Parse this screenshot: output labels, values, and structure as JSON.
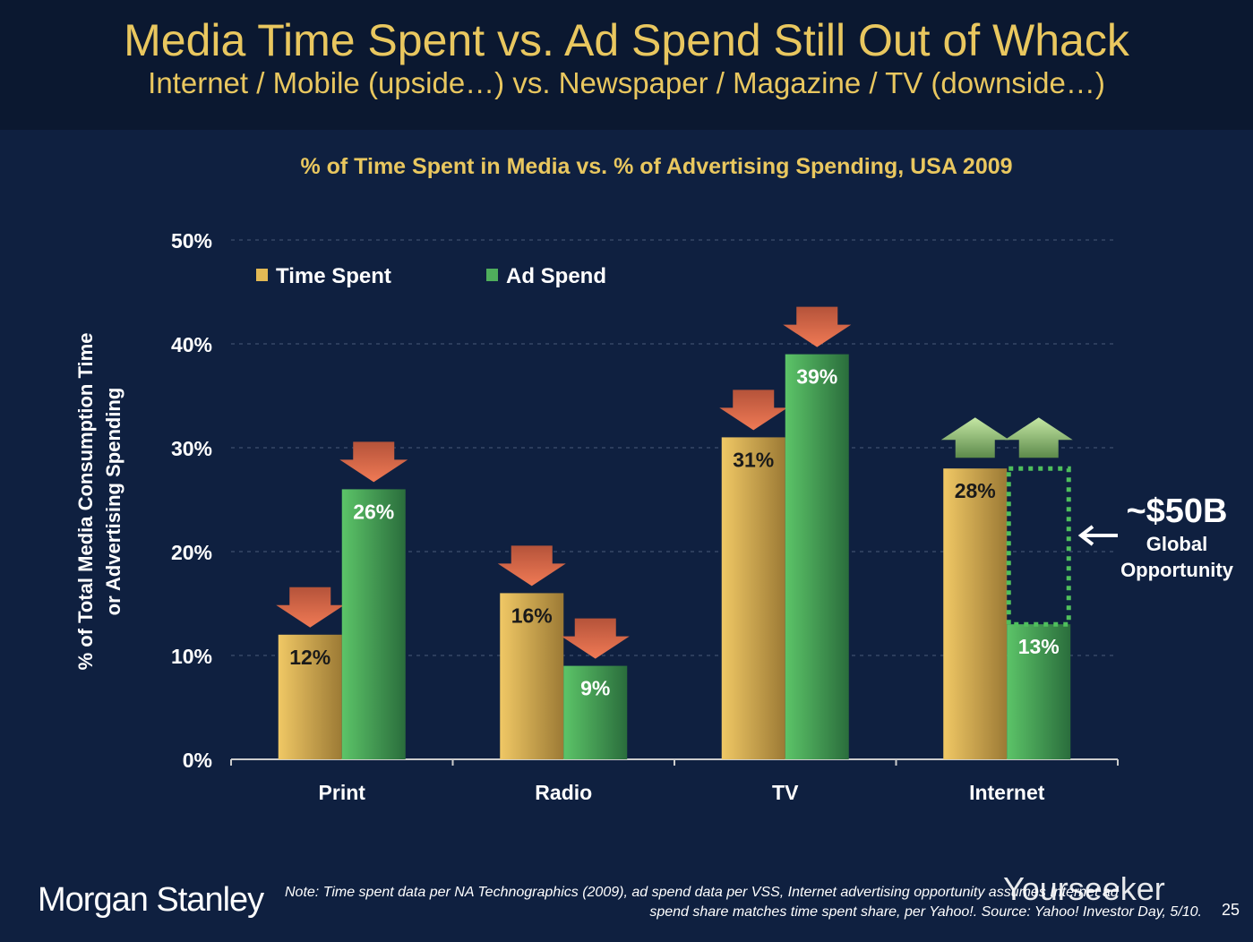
{
  "header": {
    "title": "Media Time Spent vs. Ad Spend Still Out of Whack",
    "subtitle": "Internet / Mobile (upside…) vs. Newspaper / Magazine / TV (downside…)"
  },
  "chart_data": {
    "type": "bar",
    "title": "% of Time Spent in Media vs. % of Advertising Spending, USA 2009",
    "ylabel": "% of Total Media Consumption Time or Advertising Spending",
    "ylabel_lines": [
      "% of Total Media Consumption Time",
      "or Advertising Spending"
    ],
    "xlabel": "",
    "ylim": [
      0,
      50
    ],
    "yticks": [
      "0%",
      "10%",
      "20%",
      "30%",
      "40%",
      "50%"
    ],
    "grid": true,
    "legend": "top-left",
    "categories": [
      "Print",
      "Radio",
      "TV",
      "Internet"
    ],
    "series": [
      {
        "name": "Time Spent",
        "values": [
          12,
          16,
          31,
          28
        ],
        "labels": [
          "12%",
          "16%",
          "31%",
          "28%"
        ],
        "color": "#e2b955",
        "trend": [
          "down",
          "down",
          "down",
          "up"
        ]
      },
      {
        "name": "Ad Spend",
        "values": [
          26,
          9,
          39,
          13
        ],
        "labels": [
          "26%",
          "9%",
          "39%",
          "13%"
        ],
        "color": "#4fae5c",
        "trend": [
          "down",
          "down",
          "down",
          "up"
        ]
      }
    ],
    "annotation": {
      "value": "~$50B",
      "line1": "Global",
      "line2": "Opportunity",
      "gap_from": 13,
      "gap_to": 28
    }
  },
  "footer": {
    "logo": "Morgan Stanley",
    "note_line1": "Note: Time spent data per NA Technographics (2009), ad spend data per VSS, Internet advertising opportunity assumes Internet ad",
    "note_line2": "spend share matches time spent share, per Yahoo!. Source: Yahoo! Investor Day, 5/10.",
    "page": "25",
    "watermark": "Yourseeker"
  }
}
